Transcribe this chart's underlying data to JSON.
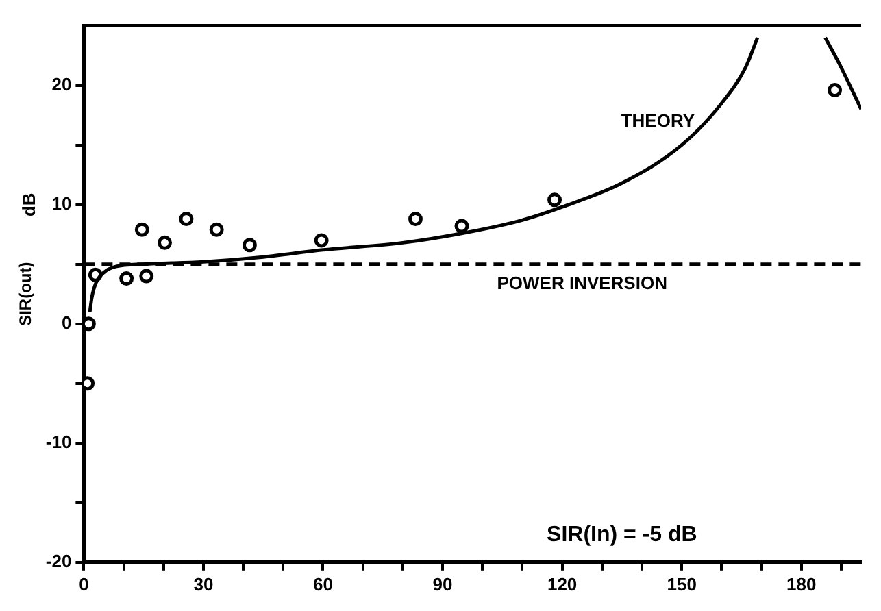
{
  "chart_data": {
    "type": "scatter",
    "ylabel": "SIR(out)",
    "xlim": [
      0,
      195
    ],
    "ylim": [
      -20,
      25
    ],
    "xticks": [
      0,
      {
        "value": 10,
        "label": null
      },
      {
        "value": 20,
        "label": null
      },
      30,
      {
        "value": 40,
        "label": null
      },
      {
        "value": 50,
        "label": null
      },
      60,
      {
        "value": 70,
        "label": null
      },
      {
        "value": 80,
        "label": null
      },
      90,
      {
        "value": 100,
        "label": null
      },
      {
        "value": 110,
        "label": null
      },
      120,
      {
        "value": 130,
        "label": null
      },
      {
        "value": 140,
        "label": null
      },
      150,
      {
        "value": 160,
        "label": null
      },
      {
        "value": 170,
        "label": null
      },
      180,
      {
        "value": 190,
        "label": null
      }
    ],
    "yticks": [
      -20,
      {
        "value": -15,
        "label": null
      },
      -10,
      {
        "value": -5,
        "label": null
      },
      0,
      {
        "value": 5,
        "label": null
      },
      10,
      {
        "value": 15,
        "label": null
      },
      20
    ],
    "grid": false,
    "legend": false,
    "series": [
      {
        "type": "line",
        "color": "#000000",
        "marker": "none",
        "line_style": "solid",
        "x": [
          1.5,
          2,
          3,
          5,
          8,
          15,
          30,
          45,
          60,
          80,
          95,
          110,
          120,
          135,
          150,
          160,
          166,
          169,
          178,
          186,
          190,
          195
        ],
        "values": [
          1.0,
          2.2,
          3.4,
          4.3,
          4.8,
          5.0,
          5.2,
          5.6,
          6.2,
          6.8,
          7.6,
          8.7,
          9.8,
          11.8,
          15.0,
          18.5,
          21.5,
          24,
          null,
          24,
          21.5,
          18
        ]
      },
      {
        "color": "#000000",
        "marker": "circle",
        "x": [
          0.9,
          1.2,
          2.9,
          10.7,
          14.6,
          15.7,
          20.3,
          25.7,
          33.3,
          41.6,
          59.6,
          83.2,
          94.8,
          118.1,
          188.4
        ],
        "values": [
          -5,
          0,
          4.1,
          3.8,
          7.9,
          4.0,
          6.8,
          8.8,
          7.9,
          6.6,
          7.0,
          8.8,
          8.2,
          10.4,
          19.6
        ]
      }
    ],
    "ref_lines": [
      {
        "axis": "y",
        "value": 5,
        "label": "POWER INVERSION",
        "line_style": "dashed",
        "color": "#000000"
      }
    ],
    "annotations": [
      {
        "text": "THEORY",
        "x": 156,
        "y": 16.5
      },
      "SIR(In) = -5 dB",
      "dB"
    ]
  }
}
